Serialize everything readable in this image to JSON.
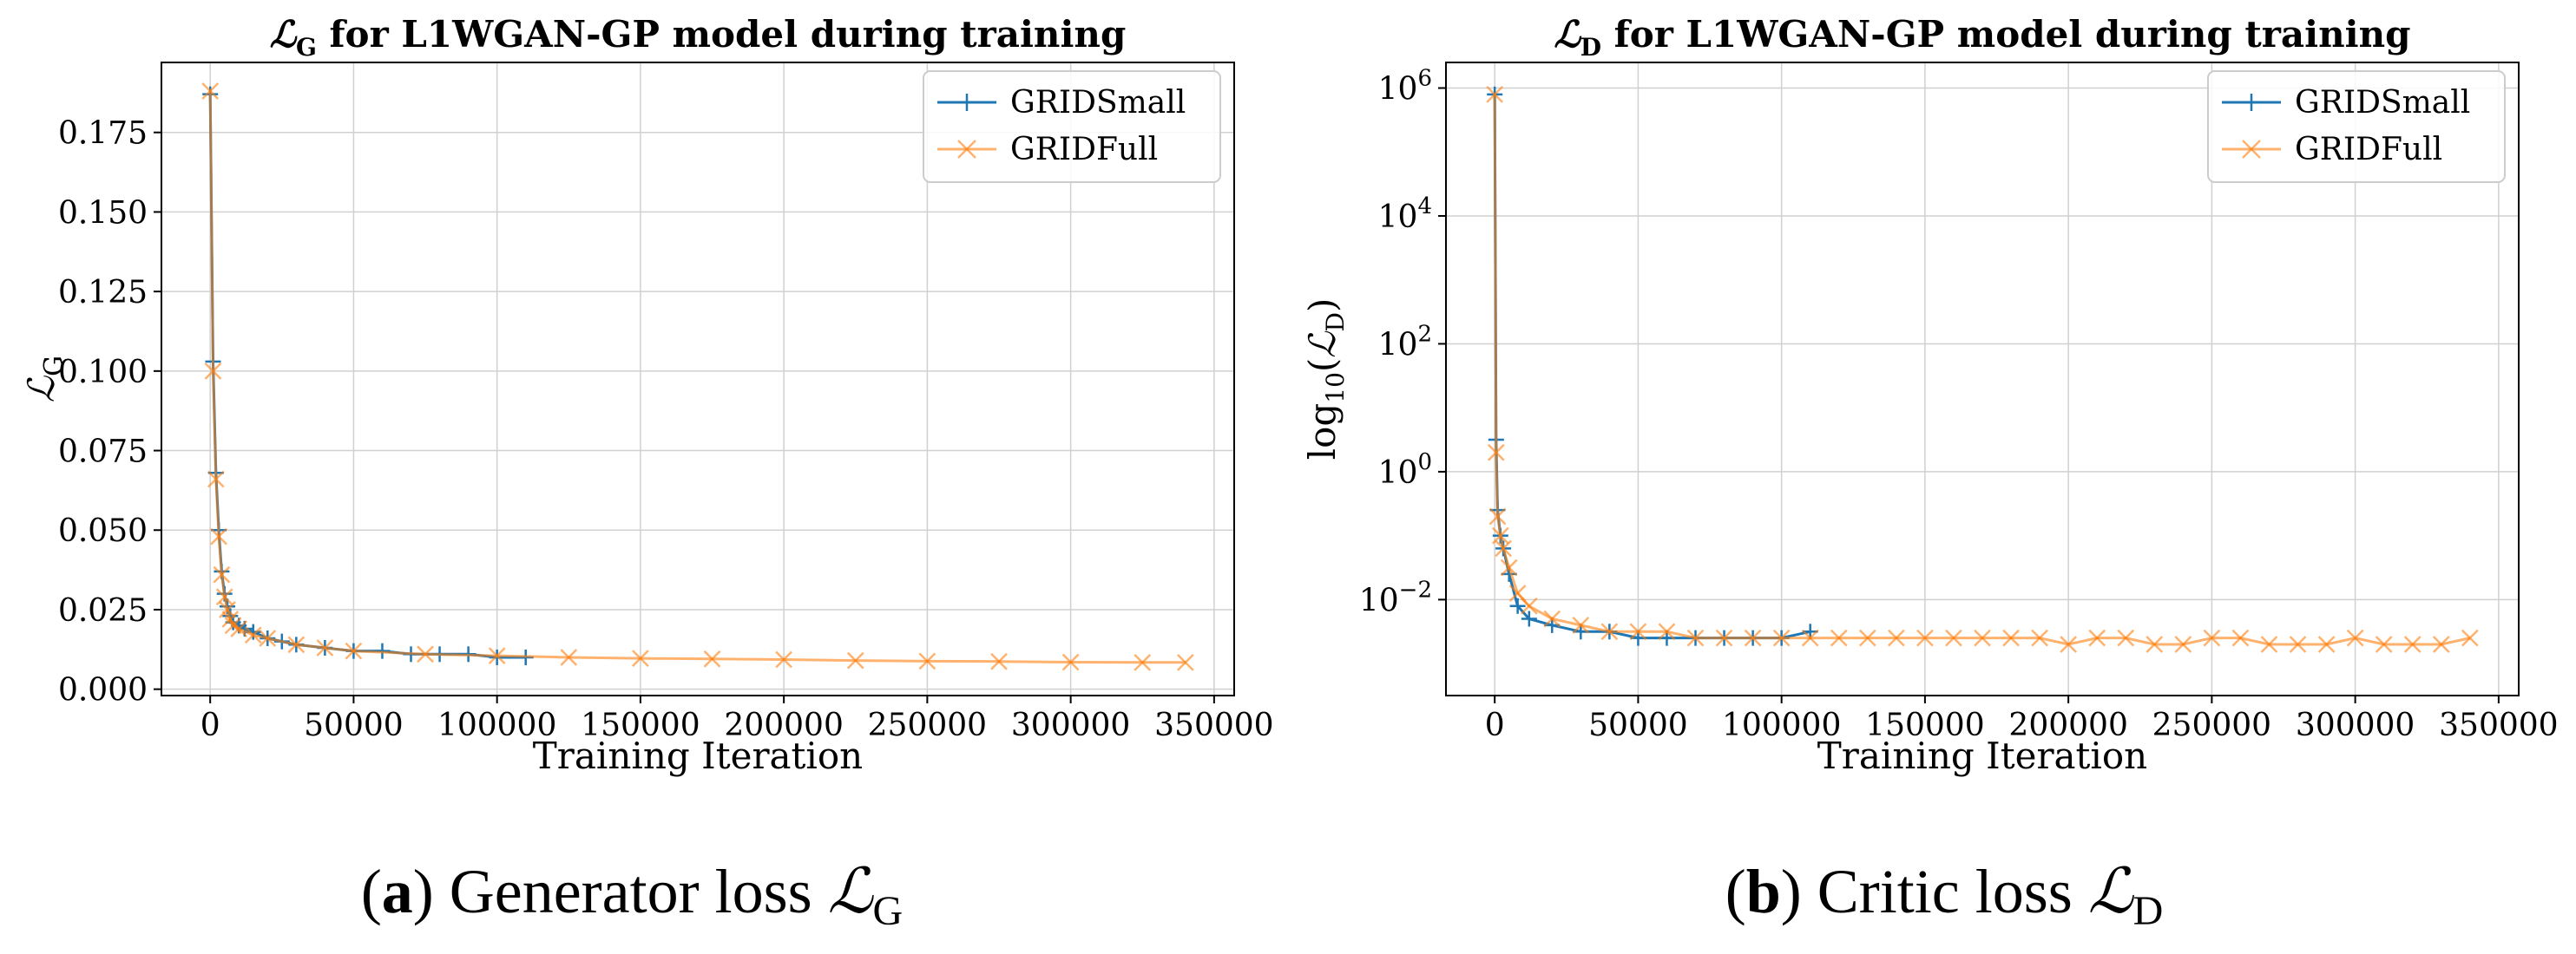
{
  "chart_data": [
    {
      "type": "line",
      "title": "ℒ_G for L1WGAN-GP model during training",
      "title_main": "for L1WGAN-GP model during training",
      "title_symbol": "ℒ",
      "title_sub": "G",
      "xlabel": "Training Iteration",
      "ylabel": "ℒ_G",
      "ylabel_symbol": "ℒ",
      "ylabel_sub": "G",
      "xscale": "linear",
      "yscale": "linear",
      "xlim": [
        -17000,
        357000
      ],
      "ylim": [
        -0.002,
        0.197
      ],
      "xticks": [
        0,
        50000,
        100000,
        150000,
        200000,
        250000,
        300000,
        350000
      ],
      "xtick_labels": [
        "0",
        "50000",
        "100000",
        "150000",
        "200000",
        "250000",
        "300000",
        "350000"
      ],
      "yticks": [
        0.0,
        0.025,
        0.05,
        0.075,
        0.1,
        0.125,
        0.15,
        0.175
      ],
      "ytick_labels": [
        "0.000",
        "0.025",
        "0.050",
        "0.075",
        "0.100",
        "0.125",
        "0.150",
        "0.175"
      ],
      "grid": true,
      "legend_position": "top-right",
      "series": [
        {
          "name": "GRIDSmall",
          "color": "#1f77b4",
          "marker": "+",
          "x": [
            0,
            1000,
            2000,
            3000,
            4000,
            5000,
            6000,
            7000,
            8000,
            10000,
            12000,
            15000,
            20000,
            25000,
            30000,
            40000,
            50000,
            60000,
            70000,
            80000,
            90000,
            100000,
            110000
          ],
          "y": [
            0.187,
            0.103,
            0.068,
            0.05,
            0.037,
            0.03,
            0.026,
            0.023,
            0.021,
            0.02,
            0.019,
            0.018,
            0.016,
            0.015,
            0.014,
            0.013,
            0.012,
            0.012,
            0.011,
            0.011,
            0.011,
            0.01,
            0.01
          ]
        },
        {
          "name": "GRIDFull",
          "color": "#ff7f0e",
          "marker": "x",
          "x": [
            0,
            1000,
            2000,
            3000,
            4000,
            5000,
            6000,
            7000,
            8000,
            10000,
            15000,
            20000,
            30000,
            40000,
            50000,
            75000,
            100000,
            125000,
            150000,
            175000,
            200000,
            225000,
            250000,
            275000,
            300000,
            325000,
            340000
          ],
          "y": [
            0.188,
            0.1,
            0.066,
            0.048,
            0.036,
            0.029,
            0.025,
            0.022,
            0.02,
            0.019,
            0.017,
            0.016,
            0.014,
            0.013,
            0.012,
            0.011,
            0.0105,
            0.01,
            0.0097,
            0.0095,
            0.0093,
            0.009,
            0.0088,
            0.0087,
            0.0085,
            0.0084,
            0.0084
          ]
        }
      ]
    },
    {
      "type": "line",
      "title": "ℒ_D for L1WGAN-GP model during training",
      "title_main": "for L1WGAN-GP model during training",
      "title_symbol": "ℒ",
      "title_sub": "D",
      "xlabel": "Training Iteration",
      "ylabel": "log10(ℒ_D)",
      "ylabel_prefix": "log",
      "ylabel_base": "10",
      "ylabel_symbol": "ℒ",
      "ylabel_sub": "D",
      "xscale": "linear",
      "yscale": "log",
      "xlim": [
        -17000,
        357000
      ],
      "ylim_exponent": [
        -3.5,
        6.4
      ],
      "xticks": [
        0,
        50000,
        100000,
        150000,
        200000,
        250000,
        300000,
        350000
      ],
      "xtick_labels": [
        "0",
        "50000",
        "100000",
        "150000",
        "200000",
        "250000",
        "300000",
        "350000"
      ],
      "yticks_exponent": [
        -2,
        0,
        2,
        4,
        6
      ],
      "ytick_base": "10",
      "ytick_exponents": [
        "−2",
        "0",
        "2",
        "4",
        "6"
      ],
      "grid": true,
      "legend_position": "top-right",
      "series": [
        {
          "name": "GRIDSmall",
          "color": "#1f77b4",
          "marker": "+",
          "x": [
            0,
            500,
            1000,
            2000,
            3000,
            5000,
            8000,
            12000,
            20000,
            30000,
            40000,
            50000,
            60000,
            70000,
            80000,
            90000,
            100000,
            110000
          ],
          "y_exponent": [
            5.9,
            0.5,
            -0.6,
            -1.0,
            -1.2,
            -1.6,
            -2.1,
            -2.3,
            -2.4,
            -2.5,
            -2.5,
            -2.6,
            -2.6,
            -2.6,
            -2.6,
            -2.6,
            -2.6,
            -2.5
          ]
        },
        {
          "name": "GRIDFull",
          "color": "#ff7f0e",
          "marker": "x",
          "x": [
            0,
            500,
            1000,
            2000,
            3000,
            5000,
            8000,
            12000,
            20000,
            30000,
            40000,
            50000,
            60000,
            70000,
            80000,
            90000,
            100000,
            110000,
            120000,
            130000,
            140000,
            150000,
            160000,
            170000,
            180000,
            190000,
            200000,
            210000,
            220000,
            230000,
            240000,
            250000,
            260000,
            270000,
            280000,
            290000,
            300000,
            310000,
            320000,
            330000,
            340000
          ],
          "y_exponent": [
            5.9,
            0.3,
            -0.7,
            -1.0,
            -1.2,
            -1.5,
            -1.9,
            -2.1,
            -2.3,
            -2.4,
            -2.5,
            -2.5,
            -2.5,
            -2.6,
            -2.6,
            -2.6,
            -2.6,
            -2.6,
            -2.6,
            -2.6,
            -2.6,
            -2.6,
            -2.6,
            -2.6,
            -2.6,
            -2.6,
            -2.7,
            -2.6,
            -2.6,
            -2.7,
            -2.7,
            -2.6,
            -2.6,
            -2.7,
            -2.7,
            -2.7,
            -2.6,
            -2.7,
            -2.7,
            -2.7,
            -2.6
          ]
        }
      ]
    }
  ],
  "captions": [
    {
      "prefix": "(",
      "letter": "a",
      "suffix": ") Generator loss ",
      "symbol": "ℒ",
      "sub": "G"
    },
    {
      "prefix": "(",
      "letter": "b",
      "suffix": ") Critic loss ",
      "symbol": "ℒ",
      "sub": "D"
    }
  ]
}
